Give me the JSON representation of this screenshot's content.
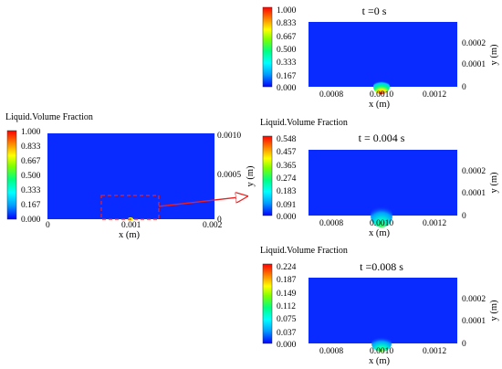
{
  "colors": {
    "field_blue": "#0a2bff",
    "callout_red": "#e82020",
    "colorbar_stops": [
      "#0000ff",
      "#00a0ff",
      "#00ffff",
      "#00ff80",
      "#80ff00",
      "#ffff00",
      "#ff8000",
      "#ff0000"
    ]
  },
  "overview": {
    "legend_title": "Liquid.Volume Fraction",
    "colorbar_ticks": [
      "1.000",
      "0.833",
      "0.667",
      "0.500",
      "0.333",
      "0.167",
      "0.000"
    ],
    "x_ticks": [
      "0",
      "0.001",
      "0.002"
    ],
    "y_ticks": [
      "0.0010",
      "0.0005",
      "0"
    ],
    "xlabel": "x (m)",
    "ylabel": "y (m)"
  },
  "panels": [
    {
      "title": "t =0 s",
      "legend_title": "",
      "colorbar_ticks": [
        "1.000",
        "0.833",
        "0.667",
        "0.500",
        "0.333",
        "0.167",
        "0.000"
      ],
      "x_ticks": [
        "0.0008",
        "0.0010",
        "0.0012"
      ],
      "y_ticks": [
        "0.0002",
        "0.0001",
        "0"
      ],
      "xlabel": "x (m)",
      "ylabel": "y (m)",
      "peak_fraction": 1.0
    },
    {
      "title": "t = 0.004 s",
      "legend_title": "Liquid.Volume Fraction",
      "colorbar_ticks": [
        "0.548",
        "0.457",
        "0.365",
        "0.274",
        "0.183",
        "0.091",
        "0.000"
      ],
      "x_ticks": [
        "0.0008",
        "0.0010",
        "0.0012"
      ],
      "y_ticks": [
        "0.0002",
        "0.0001",
        "0"
      ],
      "xlabel": "x (m)",
      "ylabel": "y (m)",
      "peak_fraction": 0.548
    },
    {
      "title": "t =0.008 s",
      "legend_title": "Liquid.Volume Fraction",
      "colorbar_ticks": [
        "0.224",
        "0.187",
        "0.149",
        "0.112",
        "0.075",
        "0.037",
        "0.000"
      ],
      "x_ticks": [
        "0.0008",
        "0.0010",
        "0.0012"
      ],
      "y_ticks": [
        "0.0002",
        "0.0001",
        "0"
      ],
      "xlabel": "x (m)",
      "ylabel": "y (m)",
      "peak_fraction": 0.224
    }
  ]
}
